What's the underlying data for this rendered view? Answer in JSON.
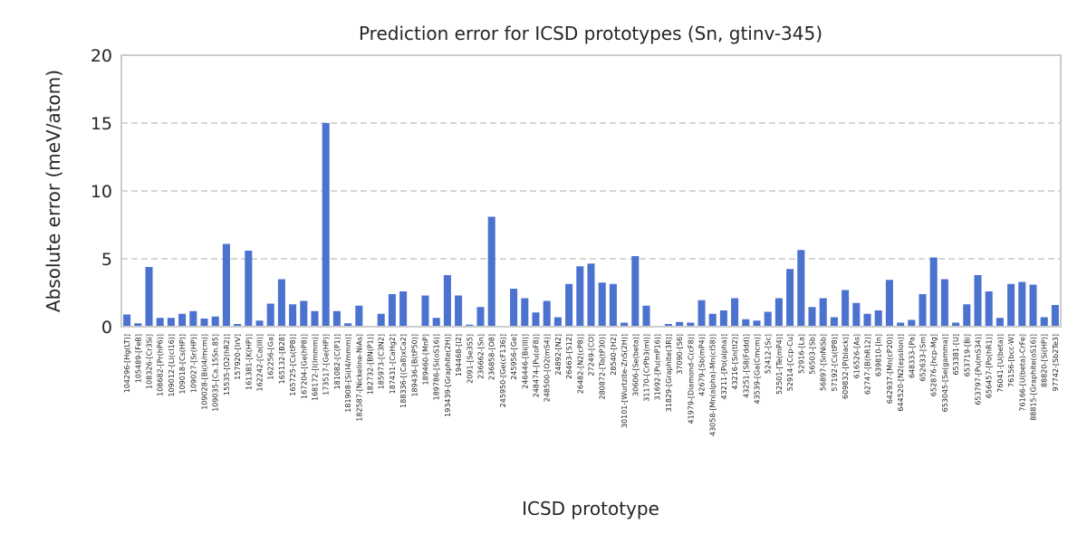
{
  "chart_data": {
    "type": "bar",
    "title": "Prediction error for ICSD prototypes (Sn, gtinv-345)",
    "xlabel": "ICSD prototype",
    "ylabel": "Absolute error (meV/atom)",
    "ylim": [
      0,
      20
    ],
    "yticks": [
      0,
      5,
      10,
      15,
      20
    ],
    "grid": true,
    "color": "#4c72d0",
    "categories": [
      "104296-[Hg(LT)]",
      "105489-[FeB]",
      "108326-[Cr3Si]",
      "108682-[Pr(hP6)]",
      "109012-[Li(cI16)]",
      "109018-[Cs(HP)]",
      "109027-[Sr(HP)]",
      "109028-[Bi(I4/mcm)]",
      "109035-[Ca.15Sn.85]",
      "15535-[O2(hR2)]",
      "157920-[IrV]",
      "161381-[K(HP)]",
      "162242-[Ca(III)]",
      "162256-[Ga]",
      "165132-[B28]",
      "165725-[Cs(tP8)]",
      "167204-[Ge(hP8)]",
      "168172-[I(Immm)]",
      "173517-[Ge(HP)]",
      "181082-[C(P1)]",
      "181908-[Si(I4/mmm)]",
      "182587-[Nickeline-NiAs]",
      "182732-[BN(P1)]",
      "185973-[C3N2]",
      "187431-[CaHg2]",
      "188336-[(Ca8)xCa2]",
      "189436-[B(tP50)]",
      "189460-[MnP]",
      "189786-[Si(oS16)]",
      "193439-[Graphite(2H)]",
      "194468-[I2]",
      "2091-[Se3S5]",
      "236662-[Sn]",
      "236858-[O8]",
      "245950-[Ge(cF136)]",
      "245956-[Ge]",
      "246446-[Bi(III)]",
      "248474-[Pu(oF8)]",
      "248500-[O2(mS4)]",
      "24892-[N2]",
      "26463-[S12]",
      "26482-[N2(cP8)]",
      "27249-[CO]",
      "280872-[Ta(tP30)]",
      "28540-[H2]",
      "30101-[Wurtzite-ZnS(2H)]",
      "30606-[Se(beta)]",
      "31170-[CrPb3(ml)]",
      "31692-[Pu(mP16)]",
      "31829-[Graphite(3R)]",
      "37090-[S6]",
      "41979-[Diamond-C(cF8)]",
      "42679-[Sb(mP4)]",
      "43058-[Mn(alpha)-Mn(cI58)]",
      "43211-[Po(alpha)]",
      "43216-[Sn(tI2)]",
      "43251-[S8(Fddd)]",
      "43539-[Ga(Cmcm)]",
      "52412-[Sc]",
      "52501-[Te(mP4)]",
      "52914-[Ccp-Cu]",
      "52916-[La]",
      "56503-[Sb]",
      "56897-[SnNiSb]",
      "57192-[Cs(tP8)]",
      "609832-[P(black)]",
      "616526-[As]",
      "62747-[B(hR12)]",
      "639810-[In]",
      "642937-[Mn(cP20)]",
      "644520-[N2(epsilon)]",
      "648333-[Pa]",
      "652633-[Sm]",
      "652876-[hcp-Mg]",
      "653045-[Se(gamma)]",
      "653381-[U]",
      "653719-[Bi]",
      "653797-[Pu(mS34)]",
      "656457-[Po(hR1)]",
      "76041-[U(beta)]",
      "76156-[bcc-W]",
      "76166-[U(beta)-CrFe]",
      "88815-[Graphite(oS16)]",
      "88820-[Si(HP)]",
      "97742-[Sb2Te3]"
    ],
    "values": [
      0.9,
      0.25,
      4.4,
      0.65,
      0.65,
      0.95,
      1.15,
      0.6,
      0.75,
      6.1,
      0.2,
      5.6,
      0.45,
      1.7,
      3.5,
      1.65,
      1.9,
      1.15,
      15.0,
      1.15,
      0.25,
      1.55,
      0.05,
      0.95,
      2.4,
      2.6,
      0.05,
      2.3,
      0.65,
      3.8,
      2.3,
      0.15,
      1.45,
      8.1,
      0.05,
      2.8,
      2.1,
      1.05,
      1.9,
      0.7,
      3.15,
      4.45,
      4.65,
      3.25,
      3.15,
      0.3,
      5.2,
      1.55,
      0.05,
      0.2,
      0.35,
      0.3,
      1.95,
      0.95,
      1.2,
      2.1,
      0.55,
      0.45,
      1.1,
      2.1,
      4.25,
      5.65,
      1.45,
      2.1,
      0.7,
      2.7,
      1.75,
      0.95,
      1.2,
      3.45,
      0.3,
      0.5,
      2.4,
      5.1,
      3.5,
      0.3,
      1.65,
      3.8,
      2.6,
      0.65,
      3.15,
      3.3,
      3.1,
      0.7,
      1.6
    ]
  }
}
